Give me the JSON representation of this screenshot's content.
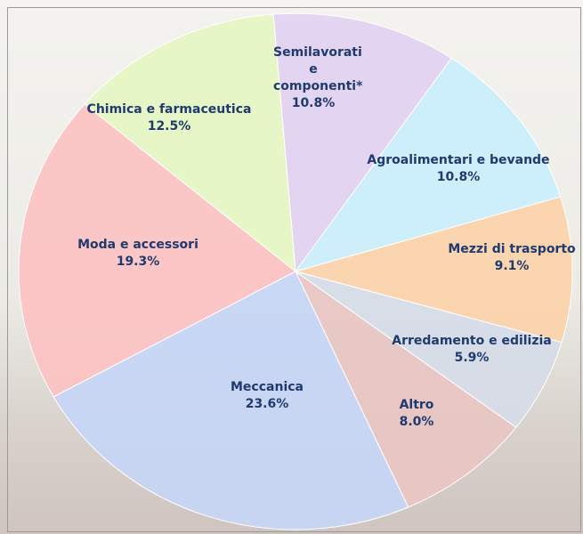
{
  "chart_data": {
    "type": "pie",
    "categories": [
      "Semilavorati e componenti*",
      "Agroalimentari e bevande",
      "Mezzi di trasporto",
      "Arredamento e edilizia",
      "Altro",
      "Meccanica",
      "Moda e accessori",
      "Chimica e farmaceutica"
    ],
    "values": [
      10.8,
      10.8,
      9.1,
      5.9,
      8.0,
      23.6,
      19.3,
      12.5
    ],
    "value_labels": [
      "10.8%",
      "10.8%",
      "9.1%",
      "5.9%",
      "8.0%",
      "23.6%",
      "19.3%",
      "12.5%"
    ],
    "colors": [
      "#e2d2f2",
      "#caeefc",
      "#fcd2aa",
      "#d6dce8",
      "#e8c6c2",
      "#c6d6f6",
      "#fcc2c2",
      "#e6f6c2"
    ]
  }
}
